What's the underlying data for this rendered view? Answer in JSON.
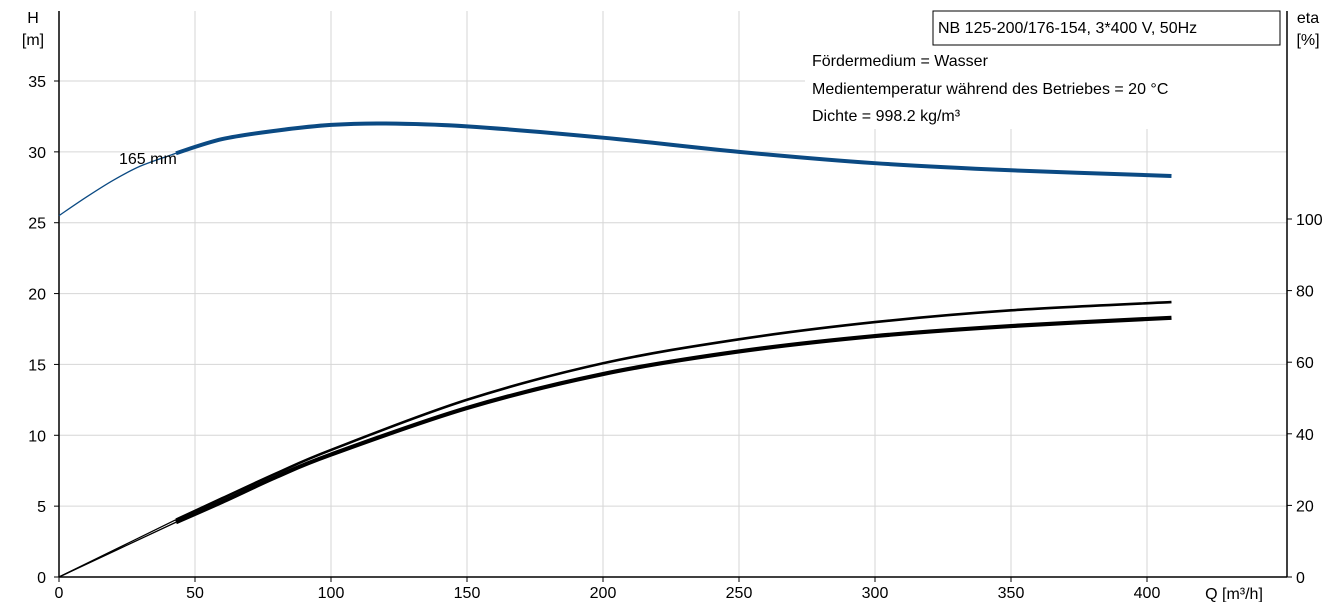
{
  "chart_data": {
    "type": "line",
    "model_label": "NB 125-200/176-154, 3*400 V, 50Hz",
    "info_lines": [
      "Fördermedium = Wasser",
      "Medientemperatur während des Betriebes = 20 °C",
      "Dichte = 998.2 kg/m³"
    ],
    "x_axis": {
      "label": "Q [m³/h]",
      "ticks": [
        0,
        50,
        100,
        150,
        200,
        250,
        300,
        350,
        400
      ],
      "range": [
        0,
        450
      ],
      "grid": true
    },
    "y_axis_left": {
      "label_top": "H",
      "label_unit": "[m]",
      "ticks": [
        0,
        5,
        10,
        15,
        20,
        25,
        30,
        35
      ],
      "range": [
        0,
        38
      ],
      "grid": true
    },
    "y_axis_right": {
      "label_top": "eta",
      "label_unit": "[%]",
      "ticks": [
        0,
        20,
        40,
        60,
        80,
        100
      ],
      "range": [
        0,
        100
      ]
    },
    "series": [
      {
        "name": "165 mm",
        "axis": "left",
        "color": "#0b4a83",
        "points": [
          [
            0,
            25.5
          ],
          [
            10,
            26.8
          ],
          [
            20,
            28.0
          ],
          [
            30,
            29.0
          ],
          [
            43,
            29.9
          ],
          [
            60,
            30.9
          ],
          [
            80,
            31.5
          ],
          [
            100,
            31.9
          ],
          [
            120,
            32.0
          ],
          [
            150,
            31.8
          ],
          [
            200,
            31.0
          ],
          [
            250,
            30.0
          ],
          [
            300,
            29.2
          ],
          [
            350,
            28.7
          ],
          [
            409,
            28.3
          ]
        ],
        "range_start": 43
      },
      {
        "axis": "right",
        "color": "#000000",
        "points": [
          [
            0,
            0
          ],
          [
            43,
            16
          ],
          [
            60,
            22
          ],
          [
            80,
            29
          ],
          [
            100,
            35.5
          ],
          [
            150,
            49.5
          ],
          [
            200,
            59.7
          ],
          [
            250,
            66.4
          ],
          [
            300,
            71.2
          ],
          [
            350,
            74.5
          ],
          [
            409,
            76.8
          ]
        ],
        "range_start": 43
      },
      {
        "axis": "right",
        "color": "#000000",
        "points": [
          [
            0,
            0
          ],
          [
            43,
            15.3
          ],
          [
            60,
            21
          ],
          [
            80,
            28
          ],
          [
            100,
            34.2
          ],
          [
            150,
            47.2
          ],
          [
            200,
            56.7
          ],
          [
            250,
            63
          ],
          [
            300,
            67.3
          ],
          [
            350,
            70.1
          ],
          [
            409,
            72.4
          ]
        ],
        "range_start": 43
      }
    ]
  }
}
